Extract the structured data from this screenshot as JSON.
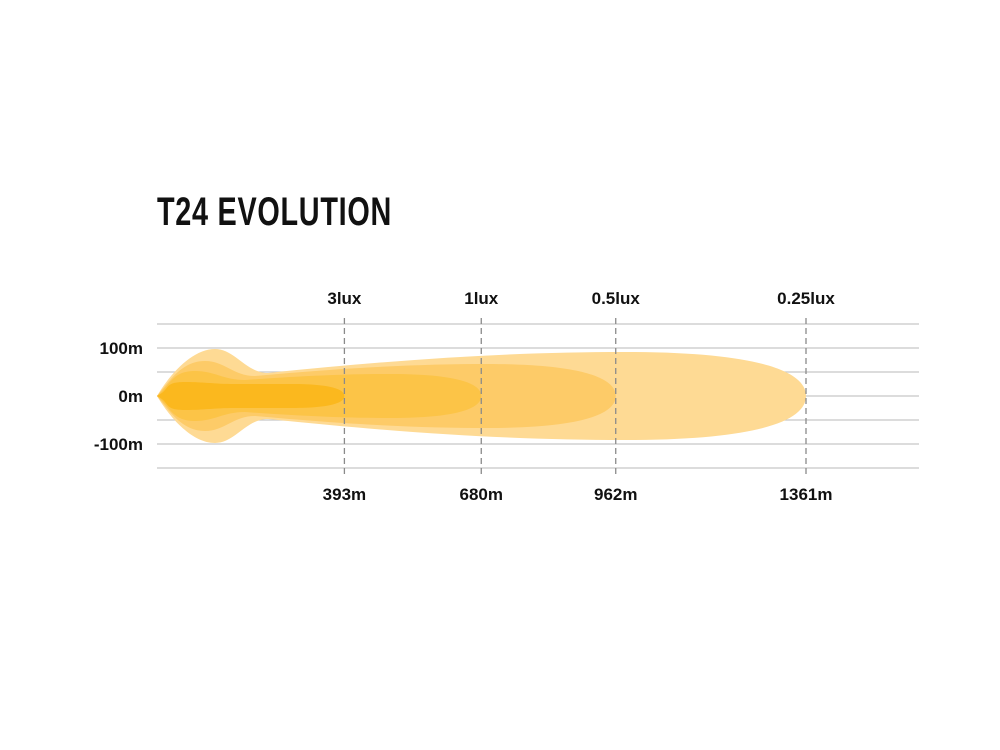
{
  "chart_data": {
    "type": "area",
    "title": "T24 EVOLUTION",
    "xlabel": "",
    "ylabel": "",
    "y_ticks": [
      "100m",
      "0m",
      "-100m"
    ],
    "ylim": [
      -150,
      150
    ],
    "xlim": [
      0,
      1600
    ],
    "grid": true,
    "levels": [
      {
        "lux_label": "3lux",
        "distance": 393,
        "distance_label": "393m",
        "color": "#FBB81E"
      },
      {
        "lux_label": "1lux",
        "distance": 680,
        "distance_label": "680m",
        "color": "#FCC447"
      },
      {
        "lux_label": "0.5lux",
        "distance": 962,
        "distance_label": "962m",
        "color": "#FDCB68"
      },
      {
        "lux_label": "0.25lux",
        "distance": 1361,
        "distance_label": "1361m",
        "color": "#FEDA94"
      }
    ]
  }
}
